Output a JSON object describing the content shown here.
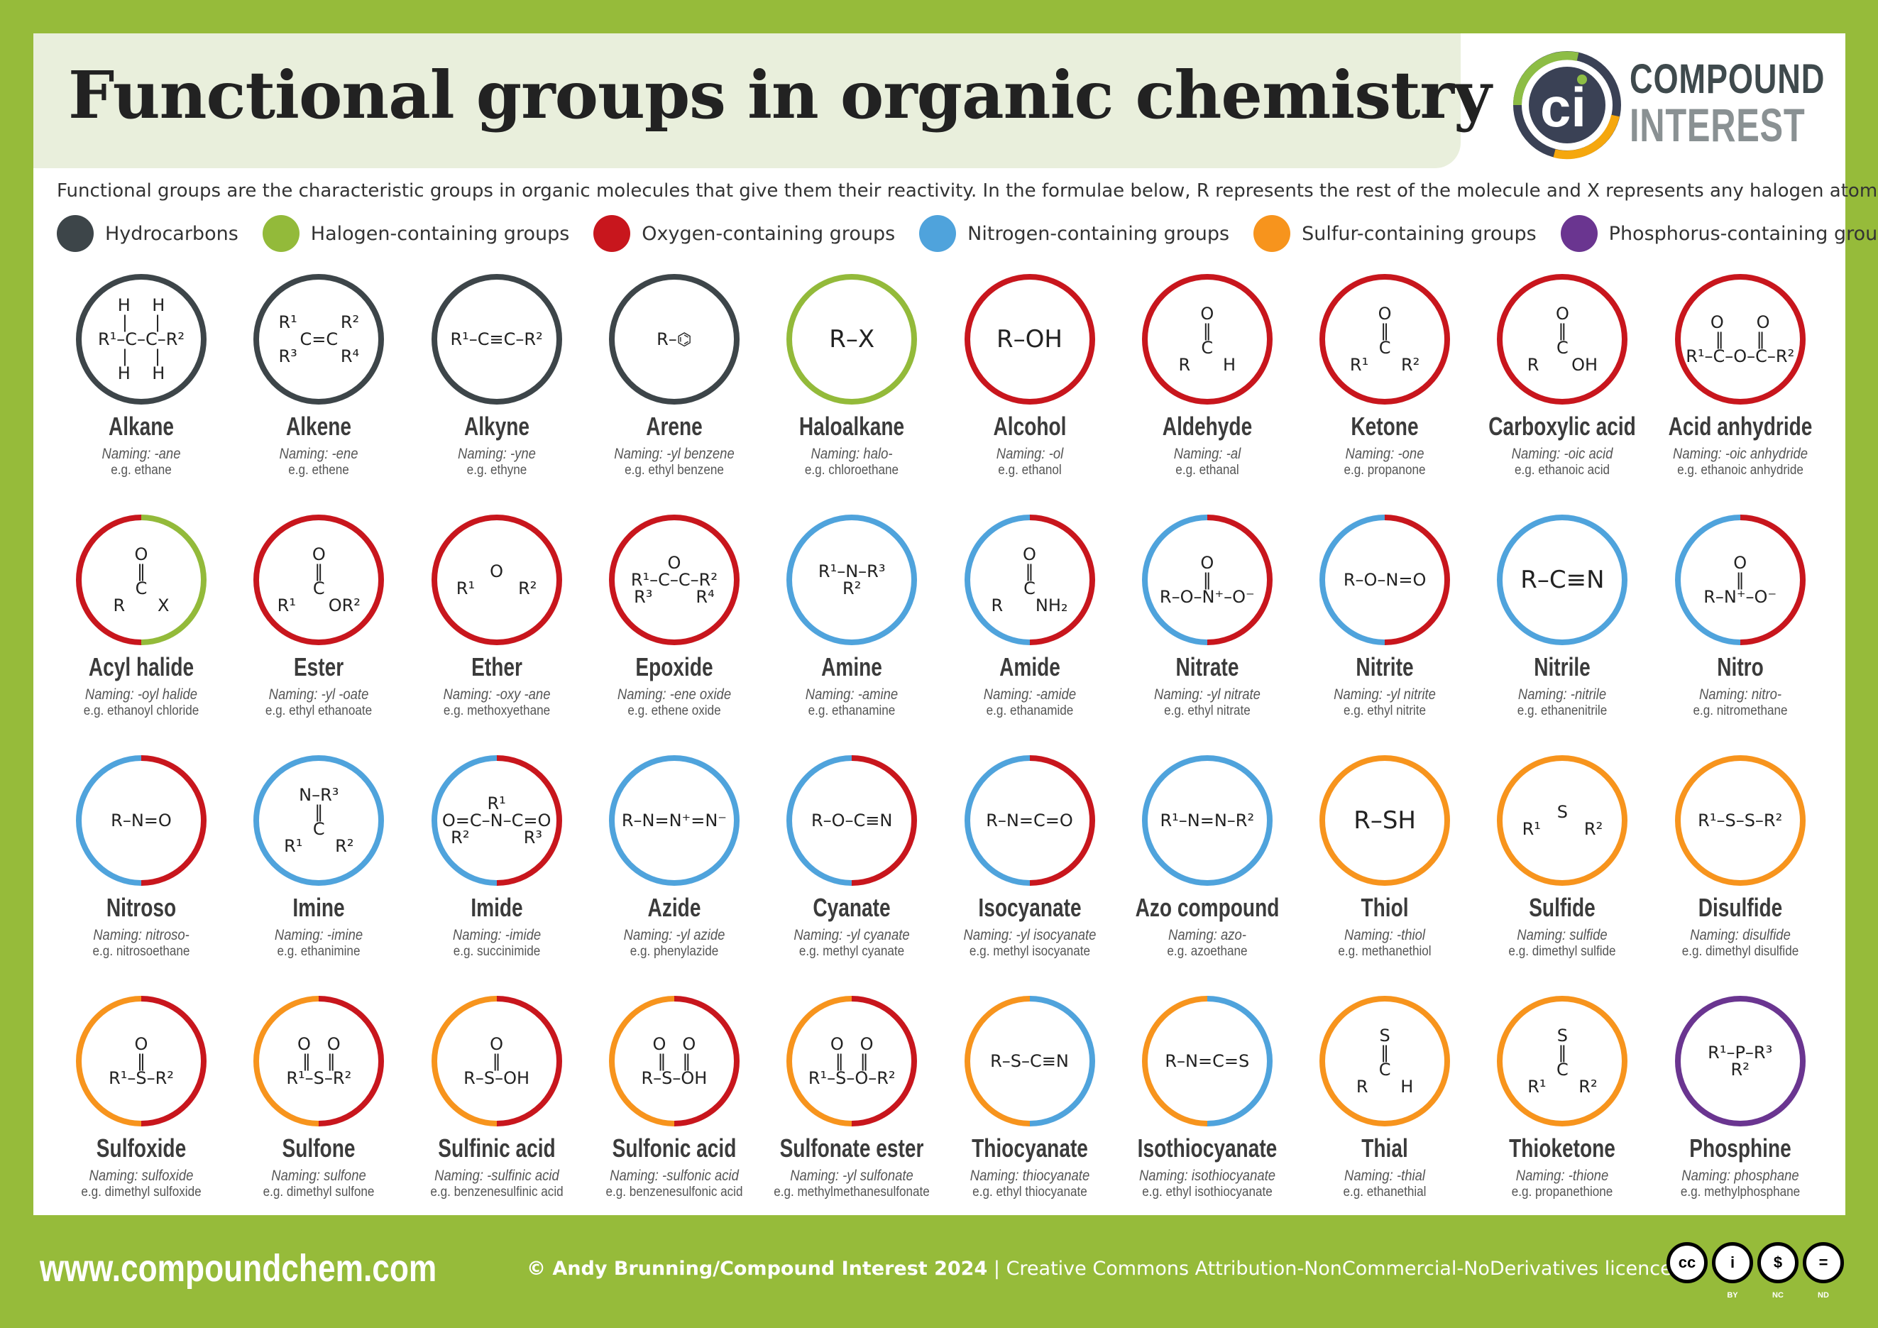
{
  "title": "Functional groups in organic chemistry",
  "logo": {
    "mark": "ci",
    "line1": "COMPOUND",
    "line2": "INTEREST"
  },
  "subtitle": "Functional groups are the characteristic groups in organic molecules that give them their reactivity. In the formulae below, R represents the rest of the molecule and X represents any halogen atom.",
  "colors": {
    "background": "#96bb3a",
    "hydrocarbons": "#3d4549",
    "halogen": "#93ba3a",
    "oxygen": "#c8161d",
    "nitrogen": "#4fa3dc",
    "sulfur": "#f7941d",
    "phosphorus": "#6a3590"
  },
  "legend": [
    {
      "label": "Hydrocarbons",
      "color": "#3d4549"
    },
    {
      "label": "Halogen-containing groups",
      "color": "#93ba3a"
    },
    {
      "label": "Oxygen-containing groups",
      "color": "#c8161d"
    },
    {
      "label": "Nitrogen-containing groups",
      "color": "#4fa3dc"
    },
    {
      "label": "Sulfur-containing groups",
      "color": "#f7941d"
    },
    {
      "label": "Phosphorus-containing groups",
      "color": "#6a3590"
    }
  ],
  "groups": [
    {
      "name": "Alkane",
      "naming": "Naming: -ane",
      "example": "e.g. ethane",
      "ring": [
        "hydrocarbons",
        "hydrocarbons"
      ],
      "formula": "H    H\n|     |\nR¹–C–C–R²\n|     |\nH    H"
    },
    {
      "name": "Alkene",
      "naming": "Naming: -ene",
      "example": "e.g. ethene",
      "ring": [
        "hydrocarbons",
        "hydrocarbons"
      ],
      "formula": "R¹        R²\nC=C\nR³        R⁴"
    },
    {
      "name": "Alkyne",
      "naming": "Naming: -yne",
      "example": "e.g. ethyne",
      "ring": [
        "hydrocarbons",
        "hydrocarbons"
      ],
      "formula": "R¹–C≡C–R²"
    },
    {
      "name": "Arene",
      "naming": "Naming: -yl benzene",
      "example": "e.g. ethyl benzene",
      "ring": [
        "hydrocarbons",
        "hydrocarbons"
      ],
      "formula": "R–⌬"
    },
    {
      "name": "Haloalkane",
      "naming": "Naming: halo-",
      "example": "e.g. chloroethane",
      "ring": [
        "halogen",
        "halogen"
      ],
      "formula": "R–X",
      "big": true
    },
    {
      "name": "Alcohol",
      "naming": "Naming: -ol",
      "example": "e.g. ethanol",
      "ring": [
        "oxygen",
        "oxygen"
      ],
      "formula": "R–OH",
      "big": true
    },
    {
      "name": "Aldehyde",
      "naming": "Naming: -al",
      "example": "e.g. ethanal",
      "ring": [
        "oxygen",
        "oxygen"
      ],
      "formula": "O\n‖\nC\nR      H"
    },
    {
      "name": "Ketone",
      "naming": "Naming: -one",
      "example": "e.g. propanone",
      "ring": [
        "oxygen",
        "oxygen"
      ],
      "formula": "O\n‖\nC\nR¹      R²"
    },
    {
      "name": "Carboxylic acid",
      "naming": "Naming: -oic acid",
      "example": "e.g. ethanoic acid",
      "ring": [
        "oxygen",
        "oxygen"
      ],
      "formula": "O\n‖\nC\nR      OH"
    },
    {
      "name": "Acid anhydride",
      "naming": "Naming: -oic anhydride",
      "example": "e.g. ethanoic anhydride",
      "ring": [
        "oxygen",
        "oxygen"
      ],
      "formula": "O      O\n‖      ‖\nR¹–C–O–C–R²"
    },
    {
      "name": "Acyl halide",
      "naming": "Naming: -oyl halide",
      "example": "e.g. ethanoyl chloride",
      "ring": [
        "oxygen",
        "halogen"
      ],
      "formula": "O\n‖\nC\nR      X"
    },
    {
      "name": "Ester",
      "naming": "Naming: -yl -oate",
      "example": "e.g. ethyl ethanoate",
      "ring": [
        "oxygen",
        "oxygen"
      ],
      "formula": "O\n‖\nC\nR¹      OR²"
    },
    {
      "name": "Ether",
      "naming": "Naming: -oxy -ane",
      "example": "e.g. methoxyethane",
      "ring": [
        "oxygen",
        "oxygen"
      ],
      "formula": "O\nR¹        R²"
    },
    {
      "name": "Epoxide",
      "naming": "Naming: -ene oxide",
      "example": "e.g. ethene oxide",
      "ring": [
        "oxygen",
        "oxygen"
      ],
      "formula": "O\nR¹–C–C–R²\nR³        R⁴"
    },
    {
      "name": "Amine",
      "naming": "Naming: -amine",
      "example": "e.g. ethanamine",
      "ring": [
        "nitrogen",
        "nitrogen"
      ],
      "formula": "R¹–N–R³\nR²"
    },
    {
      "name": "Amide",
      "naming": "Naming: -amide",
      "example": "e.g. ethanamide",
      "ring": [
        "nitrogen",
        "oxygen"
      ],
      "formula": "O\n‖\nC\nR      NH₂"
    },
    {
      "name": "Nitrate",
      "naming": "Naming: -yl nitrate",
      "example": "e.g. ethyl nitrate",
      "ring": [
        "nitrogen",
        "oxygen"
      ],
      "formula": "O\n‖\nR–O–N⁺–O⁻"
    },
    {
      "name": "Nitrite",
      "naming": "Naming: -yl nitrite",
      "example": "e.g. ethyl nitrite",
      "ring": [
        "nitrogen",
        "oxygen"
      ],
      "formula": "R–O–N=O"
    },
    {
      "name": "Nitrile",
      "naming": "Naming: -nitrile",
      "example": "e.g. ethanenitrile",
      "ring": [
        "nitrogen",
        "nitrogen"
      ],
      "formula": "R–C≡N",
      "big": true
    },
    {
      "name": "Nitro",
      "naming": "Naming: nitro-",
      "example": "e.g. nitromethane",
      "ring": [
        "nitrogen",
        "oxygen"
      ],
      "formula": "O\n‖\nR–N⁺–O⁻"
    },
    {
      "name": "Nitroso",
      "naming": "Naming: nitroso-",
      "example": "e.g. nitrosoethane",
      "ring": [
        "nitrogen",
        "oxygen"
      ],
      "formula": "R–N=O"
    },
    {
      "name": "Imine",
      "naming": "Naming: -imine",
      "example": "e.g. ethanimine",
      "ring": [
        "nitrogen",
        "nitrogen"
      ],
      "formula": "N–R³\n‖\nC\nR¹      R²"
    },
    {
      "name": "Imide",
      "naming": "Naming: -imide",
      "example": "e.g. succinimide",
      "ring": [
        "nitrogen",
        "oxygen"
      ],
      "formula": "R¹\nO=C–N–C=O\nR²          R³"
    },
    {
      "name": "Azide",
      "naming": "Naming: -yl azide",
      "example": "e.g. phenylazide",
      "ring": [
        "nitrogen",
        "nitrogen"
      ],
      "formula": "R–N=N⁺=N⁻"
    },
    {
      "name": "Cyanate",
      "naming": "Naming: -yl cyanate",
      "example": "e.g. methyl cyanate",
      "ring": [
        "nitrogen",
        "oxygen"
      ],
      "formula": "R–O–C≡N"
    },
    {
      "name": "Isocyanate",
      "naming": "Naming: -yl isocyanate",
      "example": "e.g. methyl isocyanate",
      "ring": [
        "nitrogen",
        "oxygen"
      ],
      "formula": "R–N=C=O"
    },
    {
      "name": "Azo compound",
      "naming": "Naming: azo-",
      "example": "e.g. azoethane",
      "ring": [
        "nitrogen",
        "nitrogen"
      ],
      "formula": "R¹–N=N–R²"
    },
    {
      "name": "Thiol",
      "naming": "Naming: -thiol",
      "example": "e.g. methanethiol",
      "ring": [
        "sulfur",
        "sulfur"
      ],
      "formula": "R–SH",
      "big": true
    },
    {
      "name": "Sulfide",
      "naming": "Naming: sulfide",
      "example": "e.g. dimethyl sulfide",
      "ring": [
        "sulfur",
        "sulfur"
      ],
      "formula": "S\nR¹        R²"
    },
    {
      "name": "Disulfide",
      "naming": "Naming: disulfide",
      "example": "e.g. dimethyl disulfide",
      "ring": [
        "sulfur",
        "sulfur"
      ],
      "formula": "R¹–S–S–R²"
    },
    {
      "name": "Sulfoxide",
      "naming": "Naming: sulfoxide",
      "example": "e.g. dimethyl sulfoxide",
      "ring": [
        "sulfur",
        "oxygen"
      ],
      "formula": "O\n‖\nR¹–S–R²"
    },
    {
      "name": "Sulfone",
      "naming": "Naming: sulfone",
      "example": "e.g. dimethyl sulfone",
      "ring": [
        "sulfur",
        "oxygen"
      ],
      "formula": "O   O\n‖   ‖\nR¹–S–R²"
    },
    {
      "name": "Sulfinic acid",
      "naming": "Naming: -sulfinic acid",
      "example": "e.g. benzenesulfinic acid",
      "ring": [
        "sulfur",
        "oxygen"
      ],
      "formula": "O\n‖\nR–S–OH"
    },
    {
      "name": "Sulfonic acid",
      "naming": "Naming: -sulfonic acid",
      "example": "e.g. benzenesulfonic acid",
      "ring": [
        "sulfur",
        "oxygen"
      ],
      "formula": "O   O\n‖   ‖\nR–S–OH"
    },
    {
      "name": "Sulfonate ester",
      "naming": "Naming: -yl sulfonate",
      "example": "e.g. methylmethanesulfonate",
      "ring": [
        "sulfur",
        "oxygen"
      ],
      "formula": "O   O\n‖   ‖\nR¹–S–O–R²"
    },
    {
      "name": "Thiocyanate",
      "naming": "Naming: thiocyanate",
      "example": "e.g. ethyl thiocyanate",
      "ring": [
        "sulfur",
        "nitrogen"
      ],
      "formula": "R–S–C≡N"
    },
    {
      "name": "Isothiocyanate",
      "naming": "Naming: isothiocyanate",
      "example": "e.g. ethyl isothiocyanate",
      "ring": [
        "sulfur",
        "nitrogen"
      ],
      "formula": "R–N=C=S"
    },
    {
      "name": "Thial",
      "naming": "Naming: -thial",
      "example": "e.g. ethanethial",
      "ring": [
        "sulfur",
        "sulfur"
      ],
      "formula": "S\n‖\nC\nR      H"
    },
    {
      "name": "Thioketone",
      "naming": "Naming: -thione",
      "example": "e.g. propanethione",
      "ring": [
        "sulfur",
        "sulfur"
      ],
      "formula": "S\n‖\nC\nR¹      R²"
    },
    {
      "name": "Phosphine",
      "naming": "Naming: phosphane",
      "example": "e.g. methylphosphane",
      "ring": [
        "phosphorus",
        "phosphorus"
      ],
      "formula": "R¹–P–R³\nR²"
    }
  ],
  "footer": {
    "website": "www.compoundchem.com",
    "copyright": "© Andy Brunning/Compound Interest 2024",
    "separator": "|",
    "licence": "Creative Commons Attribution-NonCommercial-NoDerivatives licence.",
    "cc_badges": [
      {
        "glyph": "cc",
        "label": ""
      },
      {
        "glyph": "i",
        "label": "BY"
      },
      {
        "glyph": "$",
        "label": "NC"
      },
      {
        "glyph": "=",
        "label": "ND"
      }
    ]
  }
}
